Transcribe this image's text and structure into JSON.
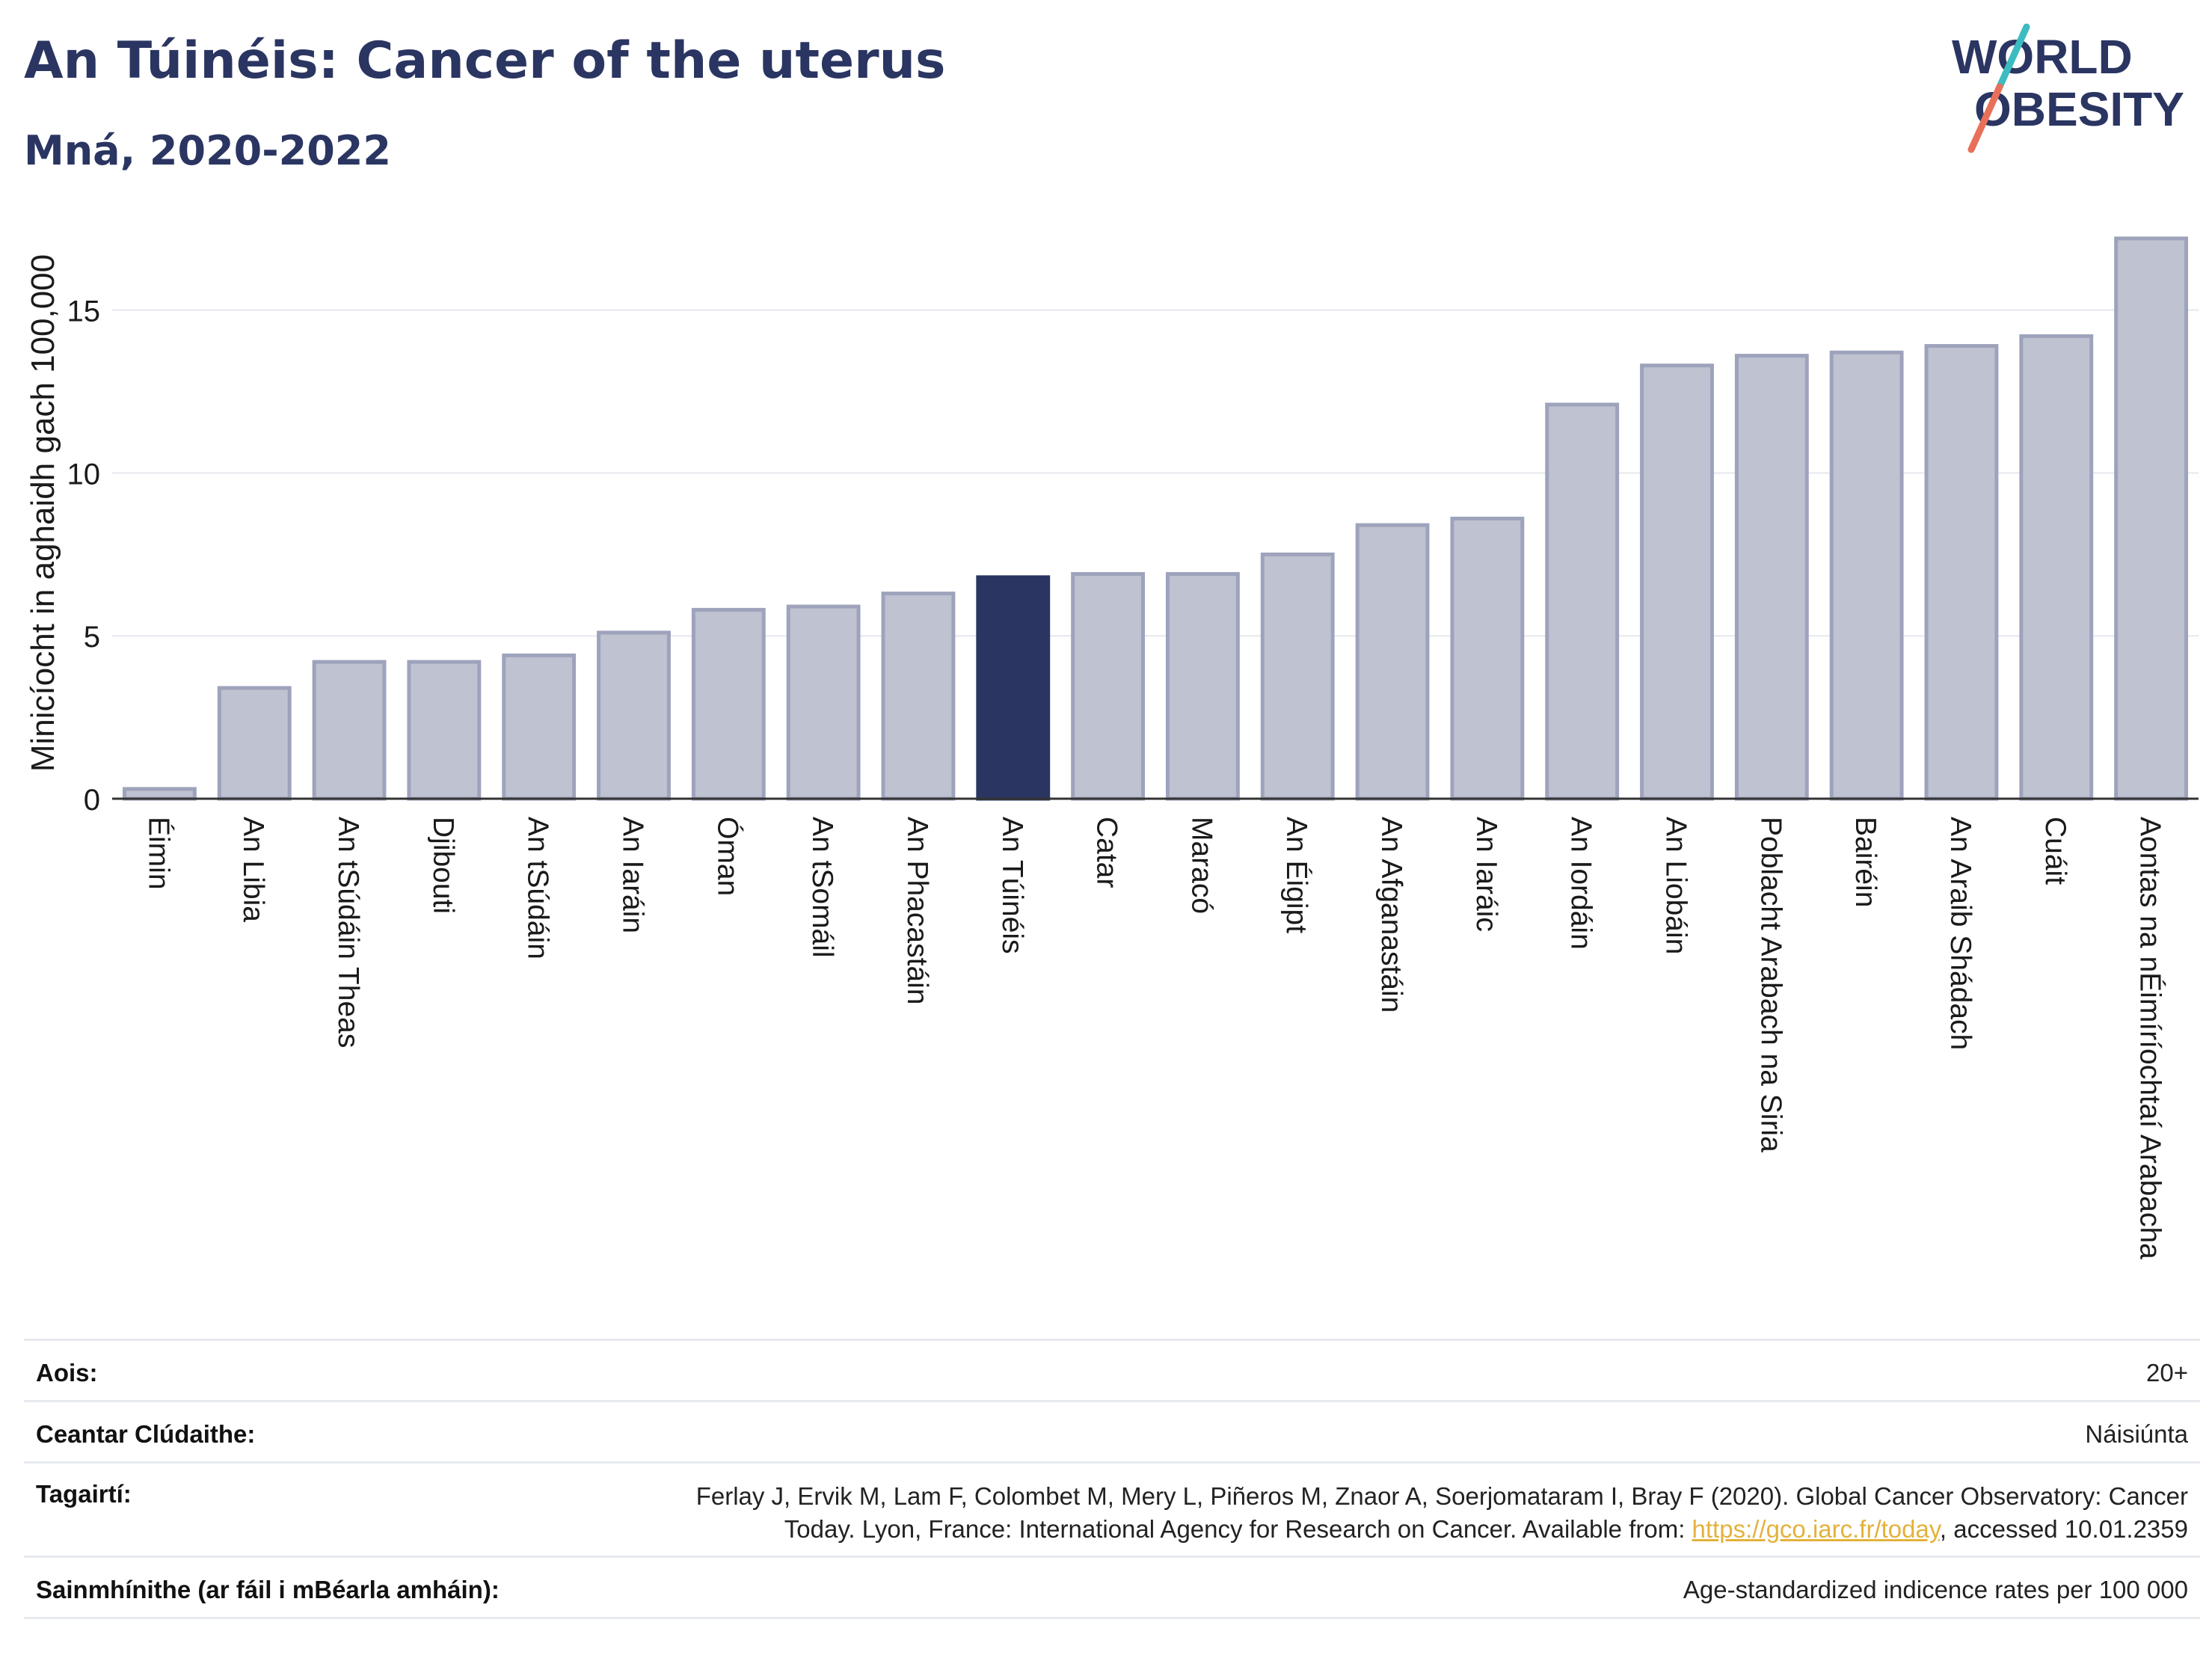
{
  "header": {
    "title": "An Túinéis: Cancer of the uterus",
    "subtitle": "Mná, 2020-2022"
  },
  "logo": {
    "line1": "WORLD",
    "line2": "OBESITY",
    "colors": {
      "text": "#2a3562",
      "slash_top": "#3bbcc0",
      "slash_bottom": "#e8705a"
    }
  },
  "colors": {
    "bar": "#bfc2d0",
    "bar_border": "#9ea3bc",
    "highlight": "#2a3562",
    "grid": "#e6e8ee",
    "axis": "#333333"
  },
  "chart_data": {
    "type": "bar",
    "ylabel": "Minicíocht in aghaidh gach 100,000",
    "ylim": [
      0,
      18
    ],
    "yticks": [
      0,
      5,
      10,
      15
    ],
    "highlight": "An Túinéis",
    "categories": [
      "Éimin",
      "An Libia",
      "An tSúdáin Theas",
      "Djibouti",
      "An tSúdáin",
      "An Iaráin",
      "Óman",
      "An tSomáil",
      "An Phacastáin",
      "An Túinéis",
      "Catar",
      "Maracó",
      "An Éigipt",
      "An Afganastáin",
      "An Iaráic",
      "An Iordáin",
      "An Liobáin",
      "Poblacht Arabach na Siria",
      "Bairéin",
      "An Araib Shádach",
      "Cuáit",
      "Aontas na nÉimíríochtaí Arabacha"
    ],
    "values": [
      0.3,
      3.4,
      4.2,
      4.2,
      4.4,
      5.1,
      5.8,
      5.9,
      6.3,
      6.8,
      6.9,
      6.9,
      7.5,
      8.4,
      8.6,
      12.1,
      13.3,
      13.6,
      13.7,
      13.9,
      14.2,
      17.2
    ]
  },
  "meta": [
    {
      "label": "Aois:",
      "value": "20+"
    },
    {
      "label": "Ceantar Clúdaithe:",
      "value": "Náisiúnta"
    },
    {
      "label": "Tagairtí:",
      "value_line1": "Ferlay J, Ervik M, Lam F, Colombet M, Mery L, Piñeros M, Znaor A, Soerjomataram I, Bray F (2020). Global Cancer Observatory: Cancer",
      "value_line2_pre": "Today. Lyon, France: International Agency for Research on Cancer. Available from: ",
      "link": "https://gco.iarc.fr/today",
      "value_line2_post": ", accessed 10.01.2359"
    },
    {
      "label": "Sainmhínithe (ar fáil i mBéarla amháin):",
      "value": "Age-standardized indicence rates per 100 000"
    }
  ]
}
